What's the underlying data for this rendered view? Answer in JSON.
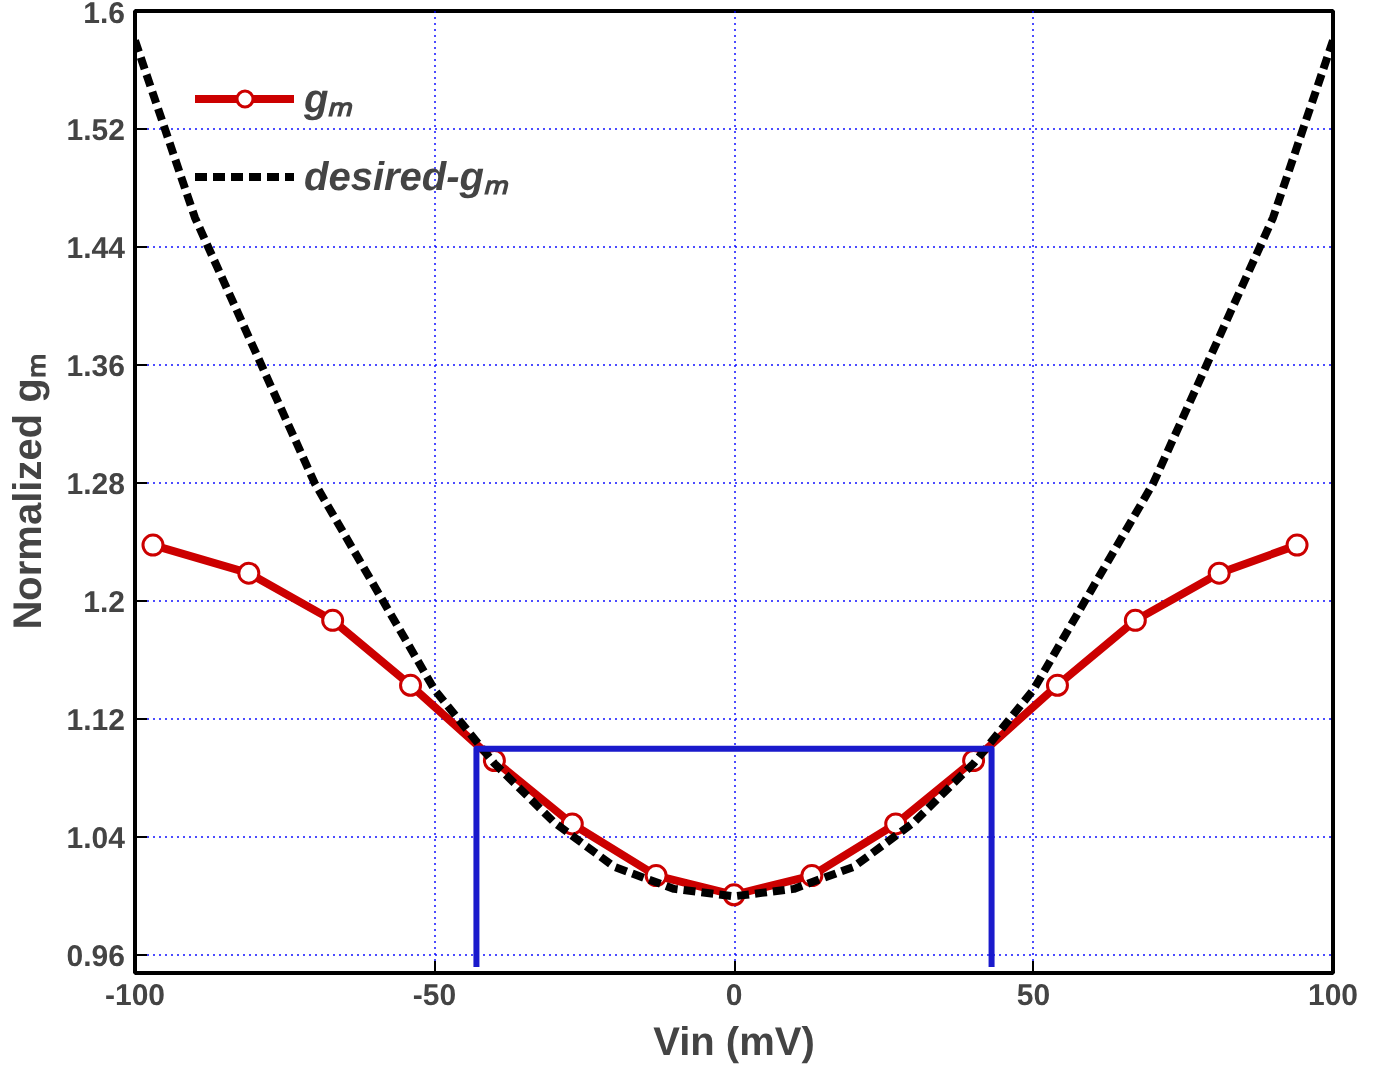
{
  "chart_data": {
    "type": "line",
    "xlabel": "Vin (mV)",
    "ylabel": "Normalized gₘ",
    "xlim": [
      -100,
      100
    ],
    "ylim": [
      0.948,
      1.6
    ],
    "xticks": [
      -100,
      -50,
      0,
      50,
      100
    ],
    "yticks": [
      0.96,
      1.04,
      1.12,
      1.2,
      1.28,
      1.36,
      1.44,
      1.52,
      1.6
    ],
    "grid": true,
    "legend": "top left",
    "series": [
      {
        "name": "gₘ",
        "color": "#cc0000",
        "marker": "circle",
        "line_style": "solid",
        "x": [
          -97,
          -81,
          -67,
          -54,
          -40,
          -27,
          -13,
          0,
          13,
          27,
          40,
          54,
          67,
          81,
          94
        ],
        "values": [
          1.238,
          1.219,
          1.187,
          1.143,
          1.092,
          1.049,
          1.014,
          1.001,
          1.014,
          1.049,
          1.092,
          1.143,
          1.187,
          1.219,
          1.238
        ]
      },
      {
        "name": "desired-gₘ",
        "color": "#000000",
        "marker": "none",
        "line_style": "dashed",
        "x": [
          -100,
          -90,
          -80,
          -70,
          -60,
          -50,
          -40,
          -30,
          -20,
          -10,
          0,
          10,
          20,
          30,
          40,
          50,
          60,
          70,
          80,
          90,
          100
        ],
        "values": [
          1.58,
          1.46,
          1.37,
          1.28,
          1.21,
          1.14,
          1.09,
          1.05,
          1.02,
          1.005,
          1.0,
          1.005,
          1.02,
          1.05,
          1.09,
          1.14,
          1.21,
          1.28,
          1.37,
          1.46,
          1.58
        ]
      },
      {
        "color": "#1a1acc",
        "marker": "none",
        "line_style": "solid",
        "x": [
          -43,
          -43,
          43,
          43
        ],
        "values": [
          0.952,
          1.1,
          1.1,
          0.952
        ]
      }
    ]
  }
}
